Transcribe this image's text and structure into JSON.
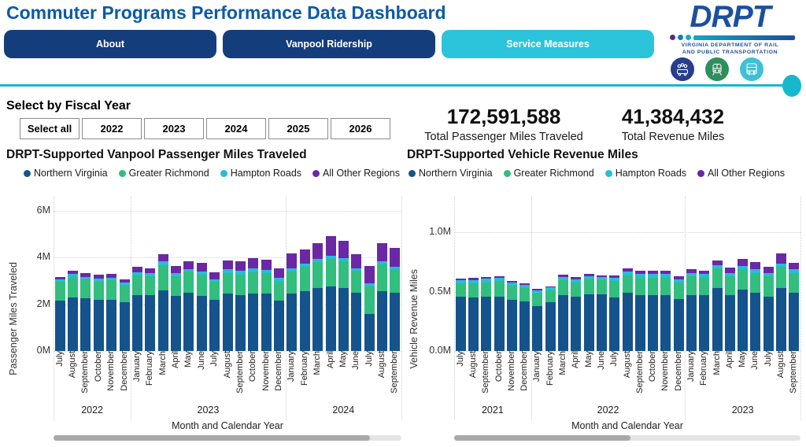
{
  "header": {
    "title": "Commuter Programs Performance Data Dashboard",
    "tabs": [
      {
        "label": "About",
        "active": false
      },
      {
        "label": "Vanpool Ridership",
        "active": false
      },
      {
        "label": "Service Measures",
        "active": true
      }
    ],
    "logo": {
      "acronym": "DRPT",
      "line1": "VIRGINIA DEPARTMENT OF RAIL",
      "line2": "AND PUBLIC TRANSPORTATION"
    },
    "logo_icons": [
      "carpool-icon",
      "train-icon",
      "bus-icon"
    ]
  },
  "filters": {
    "heading": "Select by Fiscal Year",
    "buttons": [
      "Select all",
      "2022",
      "2023",
      "2024",
      "2025",
      "2026"
    ]
  },
  "kpis": [
    {
      "value": "172,591,588",
      "label": "Total Passenger Miles Traveled"
    },
    {
      "value": "41,384,432",
      "label": "Total Revenue Miles"
    }
  ],
  "colors": {
    "series": [
      "#15538C",
      "#31BE7E",
      "#28BCD9",
      "#6B28A5"
    ],
    "tab_navy": "#143D7B",
    "tab_active_cyan": "#2BC4DA",
    "title_blue": "#0B5AA7",
    "divider_teal": "#17B8CE",
    "logo_blue": "#1C4F9E",
    "icon_circles": [
      "#273E8C",
      "#2E8F5E",
      "#3EC1D4"
    ]
  },
  "chart_data": [
    {
      "type": "bar",
      "stacked": true,
      "title": "DRPT-Supported Vanpool Passenger Miles Traveled",
      "ylabel": "Passenger Miles Traveled",
      "xlabel": "Month and Calendar Year",
      "unit": "millions of miles",
      "ymax": 6.6,
      "yticks": [
        {
          "v": 0,
          "label": "0M"
        },
        {
          "v": 2,
          "label": "2M"
        },
        {
          "v": 4,
          "label": "4M"
        },
        {
          "v": 6,
          "label": "6M"
        }
      ],
      "legend_position": "top",
      "grid": "horizontal-dotted",
      "months": [
        "July",
        "August",
        "September",
        "October",
        "November",
        "December",
        "January",
        "February",
        "March",
        "April",
        "May",
        "June",
        "July",
        "August",
        "September",
        "October",
        "November",
        "December",
        "January",
        "February",
        "March",
        "April",
        "May",
        "June",
        "July",
        "August",
        "September"
      ],
      "year_groups": [
        {
          "label": "2022",
          "count": 6
        },
        {
          "label": "2023",
          "count": 12
        },
        {
          "label": "2024",
          "count": 9
        }
      ],
      "series": [
        {
          "name": "Northern Virginia",
          "values": [
            2.15,
            2.3,
            2.25,
            2.2,
            2.2,
            2.1,
            2.4,
            2.4,
            2.6,
            2.35,
            2.5,
            2.35,
            2.2,
            2.45,
            2.4,
            2.45,
            2.45,
            2.15,
            2.45,
            2.55,
            2.7,
            2.75,
            2.7,
            2.5,
            1.6,
            2.55,
            2.5
          ]
        },
        {
          "name": "Greater Richmond",
          "values": [
            0.8,
            0.85,
            0.8,
            0.78,
            0.82,
            0.72,
            0.83,
            0.8,
            1.08,
            0.85,
            0.9,
            0.93,
            0.75,
            0.9,
            0.88,
            0.93,
            0.88,
            0.85,
            0.95,
            1.05,
            1.1,
            1.2,
            1.15,
            0.95,
            1.15,
            1.15,
            1.0
          ]
        },
        {
          "name": "Hampton Roads",
          "values": [
            0.12,
            0.14,
            0.12,
            0.12,
            0.12,
            0.1,
            0.13,
            0.12,
            0.15,
            0.13,
            0.1,
            0.13,
            0.13,
            0.14,
            0.14,
            0.15,
            0.14,
            0.13,
            0.14,
            0.14,
            0.15,
            0.12,
            0.12,
            0.1,
            0.14,
            0.14,
            0.12
          ]
        },
        {
          "name": "All Other Regions",
          "values": [
            0.1,
            0.16,
            0.18,
            0.17,
            0.16,
            0.13,
            0.24,
            0.23,
            0.32,
            0.3,
            0.33,
            0.37,
            0.28,
            0.38,
            0.41,
            0.44,
            0.43,
            0.4,
            0.63,
            0.61,
            0.65,
            0.85,
            0.75,
            0.6,
            0.74,
            0.77,
            0.8
          ]
        }
      ],
      "scroll_thumb_percent": 91
    },
    {
      "type": "bar",
      "stacked": true,
      "title": "DRPT-Supported Vehicle Revenue Miles",
      "ylabel": "Vehicle Revenue Miles",
      "xlabel": "Month and Calendar Year",
      "unit": "millions of miles",
      "ymax": 1.3,
      "yticks": [
        {
          "v": 0,
          "label": "0.0M"
        },
        {
          "v": 0.5,
          "label": "0.5M"
        },
        {
          "v": 1,
          "label": "1.0M"
        }
      ],
      "legend_position": "top",
      "grid": "horizontal-dotted",
      "months": [
        "July",
        "August",
        "September",
        "October",
        "November",
        "December",
        "January",
        "February",
        "March",
        "April",
        "May",
        "June",
        "July",
        "August",
        "September",
        "October",
        "November",
        "December",
        "January",
        "February",
        "March",
        "April",
        "May",
        "June",
        "July",
        "August",
        "September"
      ],
      "year_groups": [
        {
          "label": "2021",
          "count": 6
        },
        {
          "label": "2022",
          "count": 12
        },
        {
          "label": "2023",
          "count": 9
        }
      ],
      "series": [
        {
          "name": "Northern Virginia",
          "values": [
            0.46,
            0.45,
            0.46,
            0.46,
            0.43,
            0.42,
            0.38,
            0.41,
            0.47,
            0.46,
            0.48,
            0.48,
            0.45,
            0.49,
            0.47,
            0.47,
            0.47,
            0.44,
            0.47,
            0.47,
            0.53,
            0.47,
            0.52,
            0.49,
            0.46,
            0.53,
            0.49
          ]
        },
        {
          "name": "Greater Richmond",
          "values": [
            0.11,
            0.12,
            0.12,
            0.13,
            0.12,
            0.11,
            0.105,
            0.1,
            0.13,
            0.12,
            0.13,
            0.12,
            0.14,
            0.15,
            0.15,
            0.15,
            0.15,
            0.14,
            0.16,
            0.15,
            0.17,
            0.16,
            0.17,
            0.17,
            0.17,
            0.18,
            0.17
          ]
        },
        {
          "name": "Hampton Roads",
          "values": [
            0.03,
            0.03,
            0.03,
            0.025,
            0.028,
            0.025,
            0.028,
            0.025,
            0.025,
            0.025,
            0.023,
            0.022,
            0.025,
            0.03,
            0.03,
            0.03,
            0.03,
            0.025,
            0.03,
            0.03,
            0.025,
            0.025,
            0.025,
            0.03,
            0.028,
            0.03,
            0.03
          ]
        },
        {
          "name": "All Other Regions",
          "values": [
            0.01,
            0.015,
            0.015,
            0.015,
            0.015,
            0.015,
            0.014,
            0.012,
            0.015,
            0.015,
            0.015,
            0.015,
            0.02,
            0.03,
            0.03,
            0.03,
            0.03,
            0.025,
            0.03,
            0.03,
            0.04,
            0.05,
            0.06,
            0.06,
            0.055,
            0.08,
            0.055
          ]
        }
      ],
      "scroll_thumb_percent": 51
    }
  ]
}
